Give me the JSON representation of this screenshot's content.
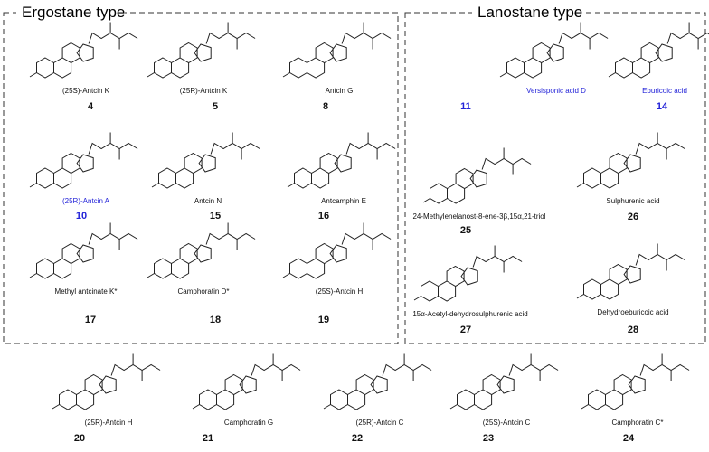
{
  "sections": [
    {
      "title": "Ergostane type",
      "compounds": [
        {
          "name": "(25S)-Antcin K",
          "number": "4"
        },
        {
          "name": "(25R)-Antcin K",
          "number": "5"
        },
        {
          "name": "Antcin G",
          "number": "8"
        },
        {
          "name": "(25R)-Antcin A",
          "number": "10",
          "color": "#2323d8"
        },
        {
          "name": "Antcin N",
          "number": "15"
        },
        {
          "name": "Antcamphin E",
          "number": "16"
        },
        {
          "name": "Methyl antcinate K*",
          "number": "17"
        },
        {
          "name": "Camphoratin D*",
          "number": "18"
        },
        {
          "name": "(25S)-Antcin H",
          "number": "19"
        }
      ]
    },
    {
      "title": "Lanostane type",
      "compounds": [
        {
          "name": "Versisponic acid D",
          "number": "11",
          "color": "#2323d8"
        },
        {
          "name": "Eburicoic acid",
          "number": "14",
          "color": "#2323d8"
        },
        {
          "name": "24-Methylenelanost-8-ene-3β,15α,21-triol",
          "number": "25"
        },
        {
          "name": "Sulphurenic acid",
          "number": "26"
        },
        {
          "name": "15α-Acetyl-dehydrosulphurenic acid",
          "number": "27"
        },
        {
          "name": "Dehydroeburicoic acid",
          "number": "28"
        }
      ]
    }
  ],
  "bottom_compounds": [
    {
      "name": "(25R)-Antcin H",
      "number": "20"
    },
    {
      "name": "Camphoratin G",
      "number": "21"
    },
    {
      "name": "(25R)-Antcin C",
      "number": "22"
    },
    {
      "name": "(25S)-Antcin C",
      "number": "23"
    },
    {
      "name": "Camphoratin C*",
      "number": "24"
    }
  ]
}
